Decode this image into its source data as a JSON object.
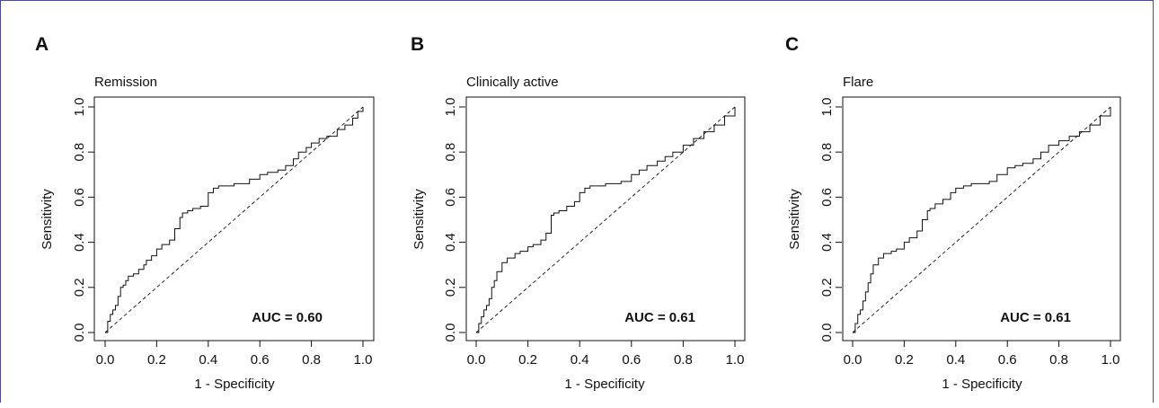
{
  "chart_data": [
    {
      "type": "line",
      "panel_label": "A",
      "title": "Remission",
      "xlabel": "1 - Specificity",
      "ylabel": "Sensitivity",
      "xlim": [
        0,
        1
      ],
      "ylim": [
        0,
        1
      ],
      "x_ticks": [
        "0.0",
        "0.2",
        "0.4",
        "0.6",
        "0.8",
        "1.0"
      ],
      "y_ticks": [
        "0.0",
        "0.2",
        "0.4",
        "0.6",
        "0.8",
        "1.0"
      ],
      "annotation": "AUC = 0.60",
      "reference_line": "diagonal dashed",
      "series": [
        {
          "x": [
            0,
            0.01,
            0.02,
            0.03,
            0.04,
            0.05,
            0.06,
            0.07,
            0.08,
            0.09,
            0.11,
            0.13,
            0.15,
            0.16,
            0.18,
            0.2,
            0.22,
            0.25,
            0.27,
            0.29,
            0.3,
            0.32,
            0.34,
            0.37,
            0.4,
            0.42,
            0.44,
            0.46,
            0.5,
            0.53,
            0.56,
            0.6,
            0.63,
            0.67,
            0.7,
            0.73,
            0.75,
            0.78,
            0.8,
            0.83,
            0.86,
            0.9,
            0.93,
            0.96,
            0.98,
            1.0
          ],
          "y": [
            0,
            0.05,
            0.08,
            0.1,
            0.12,
            0.16,
            0.2,
            0.21,
            0.23,
            0.25,
            0.26,
            0.28,
            0.3,
            0.32,
            0.34,
            0.37,
            0.39,
            0.41,
            0.46,
            0.51,
            0.53,
            0.54,
            0.55,
            0.56,
            0.62,
            0.64,
            0.65,
            0.65,
            0.66,
            0.66,
            0.68,
            0.7,
            0.71,
            0.72,
            0.74,
            0.77,
            0.8,
            0.82,
            0.84,
            0.86,
            0.87,
            0.9,
            0.92,
            0.95,
            0.98,
            1.0
          ]
        }
      ]
    },
    {
      "type": "line",
      "panel_label": "B",
      "title": "Clinically active",
      "xlabel": "1 - Specificity",
      "ylabel": "Sensitivity",
      "xlim": [
        0,
        1
      ],
      "ylim": [
        0,
        1
      ],
      "x_ticks": [
        "0.0",
        "0.2",
        "0.4",
        "0.6",
        "0.8",
        "1.0"
      ],
      "y_ticks": [
        "0.0",
        "0.2",
        "0.4",
        "0.6",
        "0.8",
        "1.0"
      ],
      "annotation": "AUC = 0.61",
      "reference_line": "diagonal dashed",
      "series": [
        {
          "x": [
            0,
            0.01,
            0.02,
            0.03,
            0.04,
            0.05,
            0.06,
            0.07,
            0.08,
            0.1,
            0.12,
            0.15,
            0.17,
            0.2,
            0.22,
            0.25,
            0.27,
            0.29,
            0.3,
            0.32,
            0.35,
            0.38,
            0.4,
            0.42,
            0.44,
            0.47,
            0.5,
            0.53,
            0.56,
            0.6,
            0.63,
            0.66,
            0.7,
            0.73,
            0.76,
            0.8,
            0.84,
            0.88,
            0.92,
            0.96,
            1.0
          ],
          "y": [
            0,
            0.04,
            0.07,
            0.1,
            0.12,
            0.15,
            0.2,
            0.23,
            0.27,
            0.31,
            0.33,
            0.35,
            0.36,
            0.38,
            0.39,
            0.41,
            0.44,
            0.52,
            0.53,
            0.54,
            0.56,
            0.58,
            0.62,
            0.64,
            0.65,
            0.65,
            0.66,
            0.66,
            0.67,
            0.7,
            0.72,
            0.74,
            0.76,
            0.78,
            0.8,
            0.83,
            0.86,
            0.89,
            0.92,
            0.96,
            1.0
          ]
        }
      ]
    },
    {
      "type": "line",
      "panel_label": "C",
      "title": "Flare",
      "xlabel": "1 - Specificity",
      "ylabel": "Sensitivity",
      "xlim": [
        0,
        1
      ],
      "ylim": [
        0,
        1
      ],
      "x_ticks": [
        "0.0",
        "0.2",
        "0.4",
        "0.6",
        "0.8",
        "1.0"
      ],
      "y_ticks": [
        "0.0",
        "0.2",
        "0.4",
        "0.6",
        "0.8",
        "1.0"
      ],
      "annotation": "AUC = 0.61",
      "reference_line": "diagonal dashed",
      "series": [
        {
          "x": [
            0,
            0.01,
            0.02,
            0.03,
            0.04,
            0.05,
            0.06,
            0.07,
            0.08,
            0.1,
            0.12,
            0.15,
            0.17,
            0.2,
            0.22,
            0.25,
            0.27,
            0.29,
            0.3,
            0.32,
            0.35,
            0.38,
            0.4,
            0.43,
            0.46,
            0.5,
            0.53,
            0.56,
            0.6,
            0.63,
            0.66,
            0.7,
            0.73,
            0.76,
            0.8,
            0.84,
            0.88,
            0.92,
            0.96,
            1.0
          ],
          "y": [
            0,
            0.04,
            0.08,
            0.1,
            0.14,
            0.18,
            0.22,
            0.26,
            0.3,
            0.33,
            0.35,
            0.36,
            0.37,
            0.4,
            0.42,
            0.45,
            0.5,
            0.54,
            0.55,
            0.57,
            0.59,
            0.62,
            0.64,
            0.65,
            0.66,
            0.66,
            0.67,
            0.7,
            0.73,
            0.74,
            0.75,
            0.77,
            0.8,
            0.83,
            0.85,
            0.87,
            0.89,
            0.92,
            0.96,
            1.0
          ]
        }
      ]
    }
  ]
}
